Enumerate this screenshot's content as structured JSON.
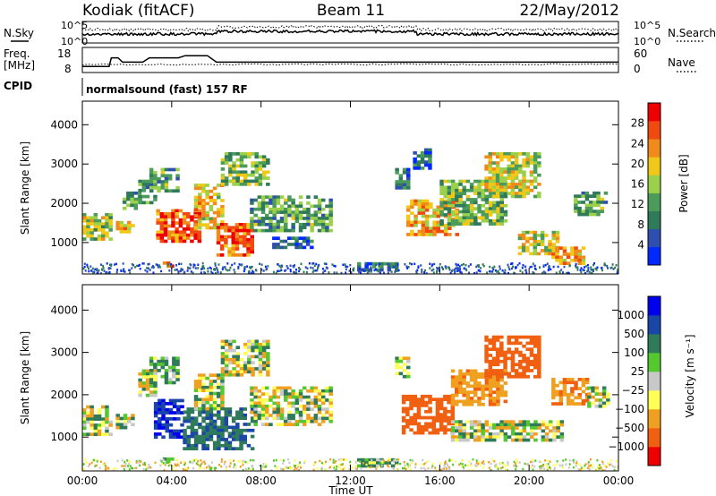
{
  "header": {
    "radar": "Kodiak (fitACF)",
    "beam": "Beam 11",
    "date": "22/May/2012"
  },
  "sky_panel": {
    "left_label": "N.Sky",
    "right_label": "N.Search",
    "left_ticks": [
      "10^5",
      "10^0"
    ],
    "right_ticks": [
      "10^5",
      "10^0"
    ]
  },
  "freq_panel": {
    "label_line1": "Freq.",
    "label_line2": "[MHz]",
    "left_ticks": [
      "18",
      "8"
    ],
    "right_ticks": [
      "60",
      "0"
    ],
    "right_label": "Nave"
  },
  "cpid": {
    "label": "CPID",
    "text": "normalsound (fast) 157 RF"
  },
  "x_axis": {
    "label": "Time UT",
    "ticks": [
      "00:00",
      "04:00",
      "08:00",
      "12:00",
      "16:00",
      "20:00",
      "00:00"
    ]
  },
  "power_colorbar": {
    "label": "Power [dB]",
    "ticks": [
      "28",
      "24",
      "20",
      "16",
      "12",
      "8",
      "4"
    ]
  },
  "velocity_colorbar": {
    "label": "Velocity  [m s⁻¹]",
    "ticks": [
      "1000",
      "500",
      "100",
      "25",
      "−25",
      "−100",
      "−500",
      "−1000"
    ]
  },
  "chart_data": [
    {
      "type": "heatmap",
      "title": "Power",
      "xlabel": "Time UT",
      "ylabel": "Slant Range [km]",
      "xlim": [
        0,
        24
      ],
      "ylim": [
        200,
        4600
      ],
      "yticks": [
        "1000",
        "2000",
        "3000",
        "4000"
      ],
      "zlabel": "Power [dB]",
      "zlim": [
        0,
        32
      ],
      "colors": [
        "#0028ff",
        "#2f4fb0",
        "#2e7a5a",
        "#4b9b5a",
        "#9bd14a",
        "#f2c818",
        "#f08a1a",
        "#f04a10",
        "#ee0000"
      ],
      "regions": [
        {
          "t": [
            0.0,
            1.2
          ],
          "r": [
            1100,
            1750
          ],
          "level": 16
        },
        {
          "t": [
            1.5,
            2.2
          ],
          "r": [
            1250,
            1550
          ],
          "level": 20
        },
        {
          "t": [
            1.8,
            2.6
          ],
          "r": [
            1900,
            2300
          ],
          "level": 12
        },
        {
          "t": [
            2.5,
            3.3
          ],
          "r": [
            2000,
            2600
          ],
          "level": 10
        },
        {
          "t": [
            3.0,
            4.3
          ],
          "r": [
            2300,
            2900
          ],
          "level": 12
        },
        {
          "t": [
            3.3,
            5.3
          ],
          "r": [
            1000,
            1850
          ],
          "level": 26
        },
        {
          "t": [
            3.6,
            4.0
          ],
          "r": [
            420,
            520
          ],
          "level": 24
        },
        {
          "t": [
            5.0,
            6.3
          ],
          "r": [
            1400,
            2500
          ],
          "level": 20
        },
        {
          "t": [
            6.0,
            7.6
          ],
          "r": [
            700,
            1500
          ],
          "level": 26
        },
        {
          "t": [
            6.2,
            8.3
          ],
          "r": [
            2500,
            3300
          ],
          "level": 14
        },
        {
          "t": [
            7.5,
            11.2
          ],
          "r": [
            1300,
            2200
          ],
          "level": 12
        },
        {
          "t": [
            8.5,
            10.3
          ],
          "r": [
            850,
            1150
          ],
          "level": 6
        },
        {
          "t": [
            12.3,
            14.0
          ],
          "r": [
            300,
            500
          ],
          "level": 8
        },
        {
          "t": [
            14.0,
            14.6
          ],
          "r": [
            2400,
            2900
          ],
          "level": 8
        },
        {
          "t": [
            14.5,
            16.8
          ],
          "r": [
            1200,
            2100
          ],
          "level": 22
        },
        {
          "t": [
            14.8,
            15.5
          ],
          "r": [
            2900,
            3400
          ],
          "level": 6
        },
        {
          "t": [
            16.0,
            19.0
          ],
          "r": [
            1500,
            2600
          ],
          "level": 14
        },
        {
          "t": [
            18.0,
            20.5
          ],
          "r": [
            2200,
            3300
          ],
          "level": 18
        },
        {
          "t": [
            19.5,
            21.2
          ],
          "r": [
            700,
            1300
          ],
          "level": 18
        },
        {
          "t": [
            21.0,
            22.5
          ],
          "r": [
            450,
            900
          ],
          "level": 22
        },
        {
          "t": [
            22.0,
            23.5
          ],
          "r": [
            1700,
            2300
          ],
          "level": 12
        }
      ]
    },
    {
      "type": "heatmap",
      "title": "Velocity",
      "xlabel": "Time UT",
      "ylabel": "Slant Range [km]",
      "xlim": [
        0,
        24
      ],
      "ylim": [
        200,
        4600
      ],
      "yticks": [
        "1000",
        "2000",
        "3000",
        "4000"
      ],
      "zlabel": "Velocity [m s-1]",
      "colors": [
        "#0000ee",
        "#1a46a8",
        "#2e7a5a",
        "#55c830",
        "#c8c8c8",
        "#ffff55",
        "#f0a020",
        "#f06010",
        "#ee0000"
      ],
      "regions": [
        {
          "t": [
            0.0,
            1.2
          ],
          "r": [
            1100,
            1750
          ],
          "v": 0
        },
        {
          "t": [
            1.5,
            2.3
          ],
          "r": [
            1250,
            1550
          ],
          "v": 0
        },
        {
          "t": [
            2.5,
            3.3
          ],
          "r": [
            2000,
            2600
          ],
          "v": 0
        },
        {
          "t": [
            3.0,
            4.3
          ],
          "r": [
            2300,
            2900
          ],
          "v": 150
        },
        {
          "t": [
            3.2,
            4.5
          ],
          "r": [
            1000,
            1900
          ],
          "v": 800
        },
        {
          "t": [
            3.6,
            4.0
          ],
          "r": [
            420,
            520
          ],
          "v": 200
        },
        {
          "t": [
            4.5,
            7.6
          ],
          "r": [
            700,
            1700
          ],
          "v": 300
        },
        {
          "t": [
            5.0,
            6.3
          ],
          "r": [
            1700,
            2500
          ],
          "v": 0
        },
        {
          "t": [
            6.2,
            8.3
          ],
          "r": [
            2500,
            3300
          ],
          "v": 0
        },
        {
          "t": [
            7.5,
            11.2
          ],
          "r": [
            1300,
            2200
          ],
          "v": 0
        },
        {
          "t": [
            12.3,
            14.0
          ],
          "r": [
            300,
            500
          ],
          "v": 150
        },
        {
          "t": [
            14.0,
            14.6
          ],
          "r": [
            2400,
            2900
          ],
          "v": 0
        },
        {
          "t": [
            14.3,
            16.5
          ],
          "r": [
            1100,
            2000
          ],
          "v": -600
        },
        {
          "t": [
            16.5,
            19.0
          ],
          "r": [
            1800,
            2600
          ],
          "v": -300
        },
        {
          "t": [
            18.0,
            20.5
          ],
          "r": [
            2400,
            3400
          ],
          "v": -600
        },
        {
          "t": [
            16.5,
            21.5
          ],
          "r": [
            900,
            1400
          ],
          "v": 0
        },
        {
          "t": [
            21.0,
            22.6
          ],
          "r": [
            1800,
            2400
          ],
          "v": -300
        },
        {
          "t": [
            22.6,
            23.6
          ],
          "r": [
            1700,
            2200
          ],
          "v": 0
        }
      ]
    },
    {
      "type": "line",
      "title": "Freq",
      "ylabel": "Freq. [MHz]",
      "ylim": [
        8,
        18
      ],
      "x": [
        0.0,
        1.2,
        1.3,
        1.6,
        1.8,
        2.7,
        3.0,
        4.3,
        4.6,
        5.6,
        6.0,
        24.0
      ],
      "y": [
        10,
        10,
        14,
        14,
        12,
        12,
        14,
        14,
        15,
        15,
        12,
        12
      ]
    }
  ]
}
